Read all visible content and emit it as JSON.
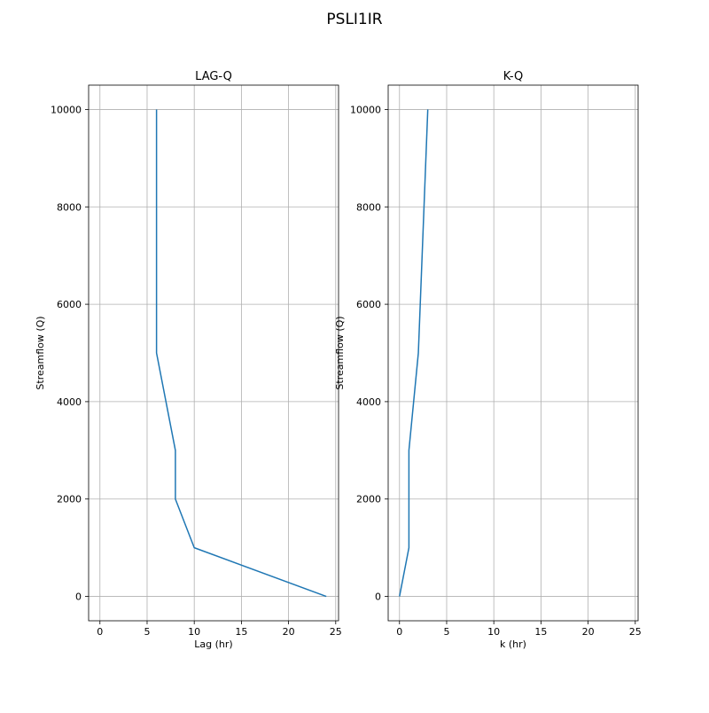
{
  "figure": {
    "suptitle": "PSLI1IR"
  },
  "chart_data": [
    {
      "type": "line",
      "title": "LAG-Q",
      "xlabel": "Lag (hr)",
      "ylabel": "Streamflow (Q)",
      "xlim": [
        -1.2,
        25.3
      ],
      "ylim": [
        -500,
        10500
      ],
      "xticks": [
        0,
        5,
        10,
        15,
        20,
        25
      ],
      "yticks": [
        0,
        2000,
        4000,
        6000,
        8000,
        10000
      ],
      "grid": true,
      "series": [
        {
          "color": "#1f77b4",
          "x": [
            24,
            10,
            8,
            8,
            6,
            6
          ],
          "y": [
            0,
            1000,
            2000,
            3000,
            5000,
            10000
          ]
        }
      ]
    },
    {
      "type": "line",
      "title": "K-Q",
      "xlabel": "k (hr)",
      "ylabel": "Streamflow (Q)",
      "xlim": [
        -1.2,
        25.3
      ],
      "ylim": [
        -500,
        10500
      ],
      "xticks": [
        0,
        5,
        10,
        15,
        20,
        25
      ],
      "yticks": [
        0,
        2000,
        4000,
        6000,
        8000,
        10000
      ],
      "grid": true,
      "series": [
        {
          "color": "#1f77b4",
          "x": [
            0,
            1,
            1,
            2,
            3
          ],
          "y": [
            0,
            1000,
            3000,
            5000,
            10000
          ]
        }
      ]
    }
  ]
}
